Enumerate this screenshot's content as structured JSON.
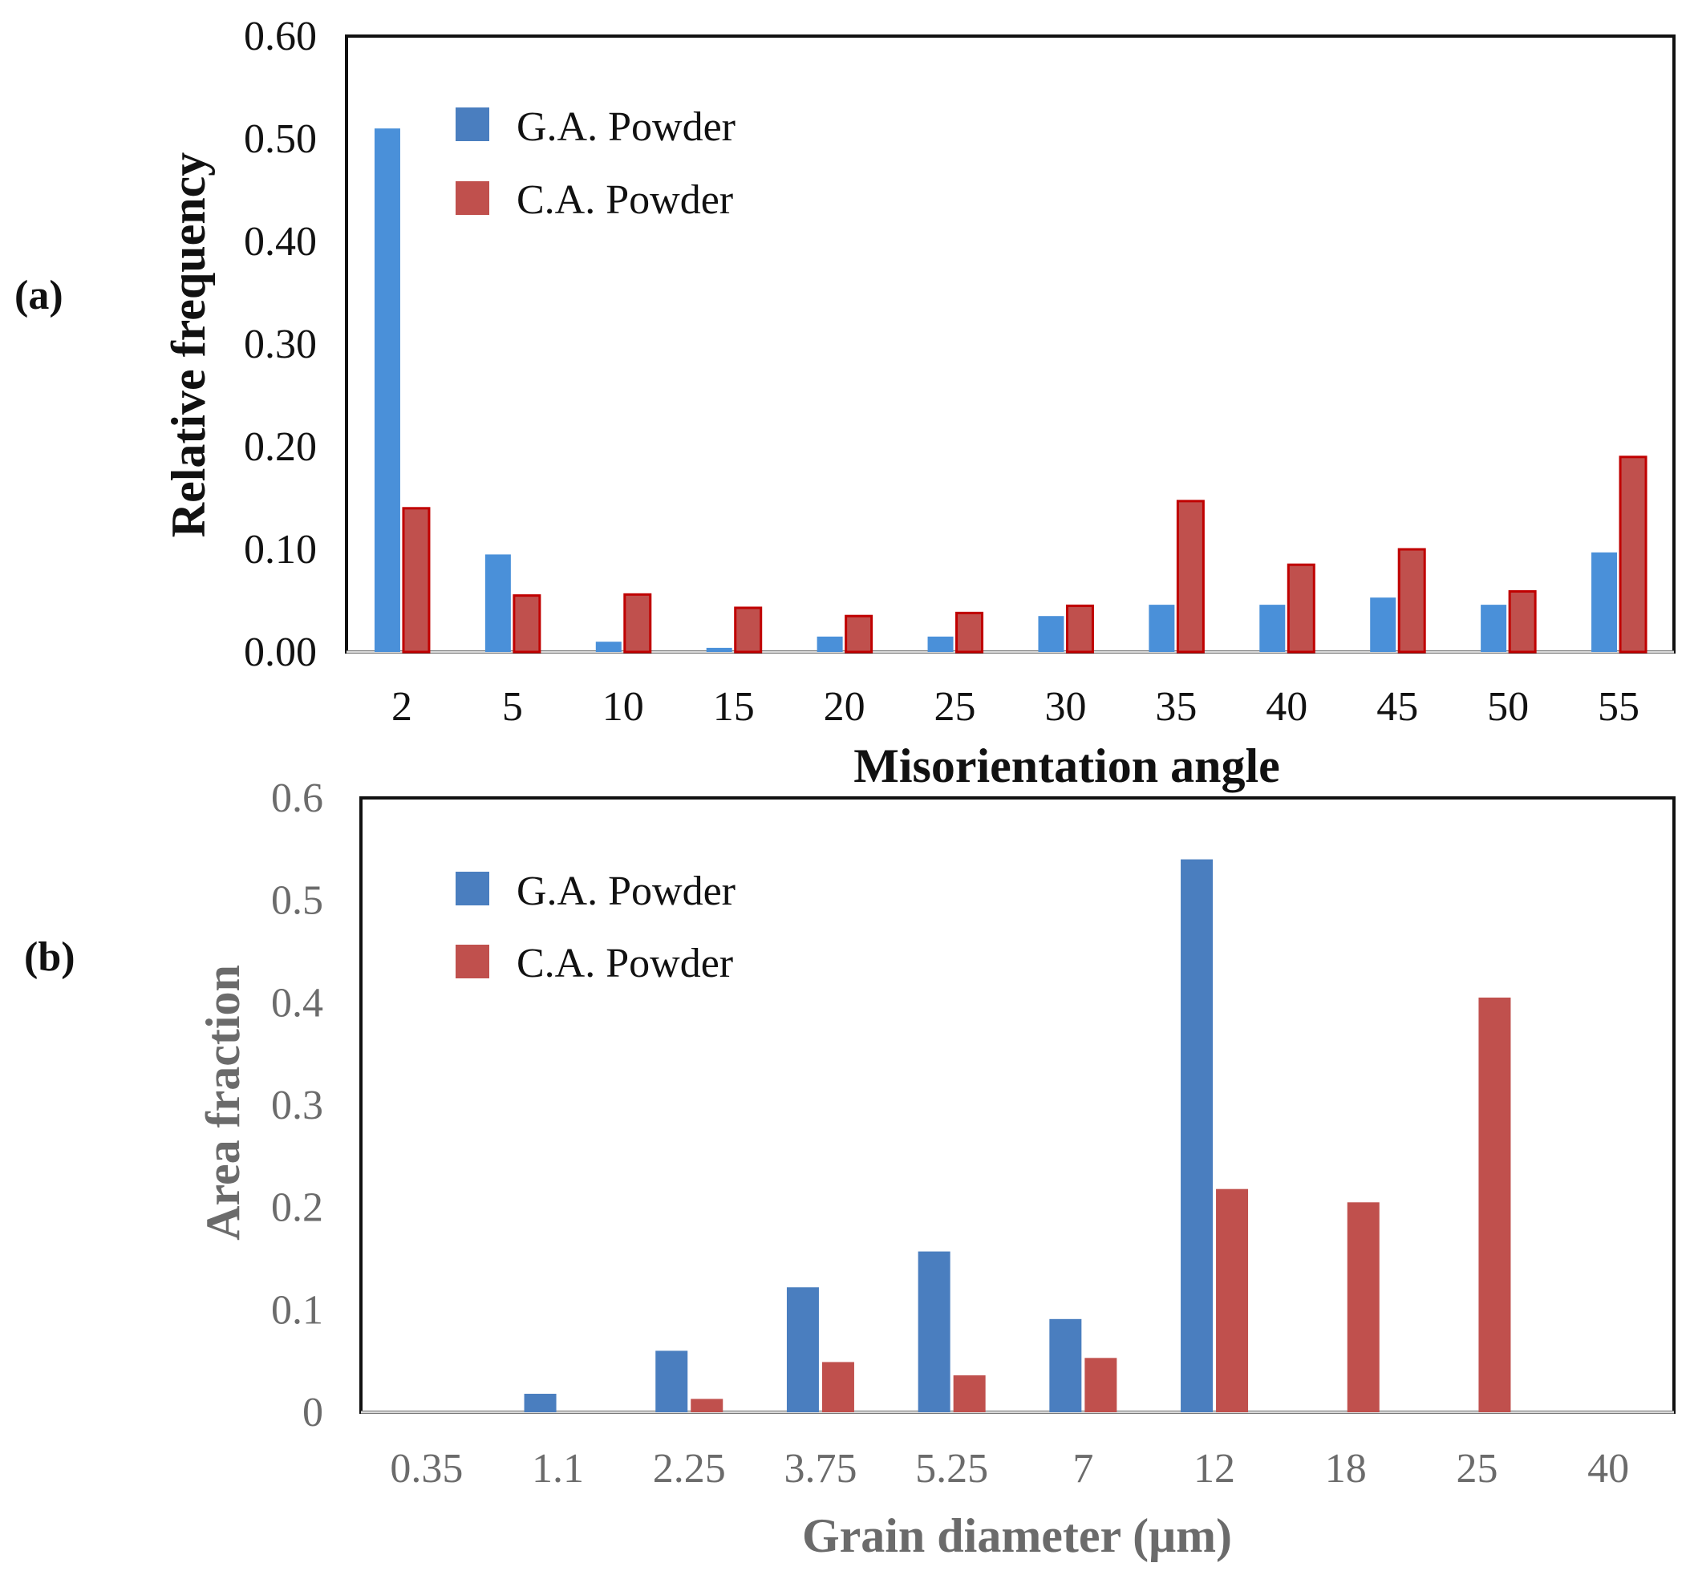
{
  "chart_data": [
    {
      "type": "bar",
      "panel_label": "(a)",
      "categories": [
        "2",
        "5",
        "10",
        "15",
        "20",
        "25",
        "30",
        "35",
        "40",
        "45",
        "50",
        "55"
      ],
      "series": [
        {
          "name": "G.A. Powder",
          "color": "#4a90d9",
          "values": [
            0.51,
            0.095,
            0.01,
            0.004,
            0.015,
            0.015,
            0.035,
            0.046,
            0.046,
            0.053,
            0.046,
            0.097
          ]
        },
        {
          "name": "C.A. Powder",
          "color": "#c0504d",
          "values": [
            0.14,
            0.055,
            0.056,
            0.043,
            0.035,
            0.038,
            0.045,
            0.147,
            0.085,
            0.1,
            0.059,
            0.19
          ]
        }
      ],
      "ylim": [
        0,
        0.6
      ],
      "yticks": [
        "0.00",
        "0.10",
        "0.20",
        "0.30",
        "0.40",
        "0.50",
        "0.60"
      ],
      "xlabel": "Misorientation angle",
      "ylabel": "Relative frequency",
      "legend": "top-left"
    },
    {
      "type": "bar",
      "panel_label": "(b)",
      "categories": [
        "0.35",
        "1.1",
        "2.25",
        "3.75",
        "5.25",
        "7",
        "12",
        "18",
        "25",
        "40"
      ],
      "series": [
        {
          "name": "G.A. Powder",
          "color": "#4a7ebf",
          "values": [
            0,
            0.018,
            0.06,
            0.122,
            0.157,
            0.091,
            0.54,
            0,
            0,
            0
          ]
        },
        {
          "name": "C.A. Powder",
          "color": "#c0504d",
          "values": [
            0,
            0,
            0.013,
            0.049,
            0.036,
            0.053,
            0.218,
            0.205,
            0.405,
            0
          ]
        }
      ],
      "ylim": [
        0,
        0.6
      ],
      "yticks": [
        "0",
        "0.1",
        "0.2",
        "0.3",
        "0.4",
        "0.5",
        "0.6"
      ],
      "xlabel": "Grain diameter (μm)",
      "ylabel": "Area fraction",
      "legend": "top-left"
    }
  ]
}
